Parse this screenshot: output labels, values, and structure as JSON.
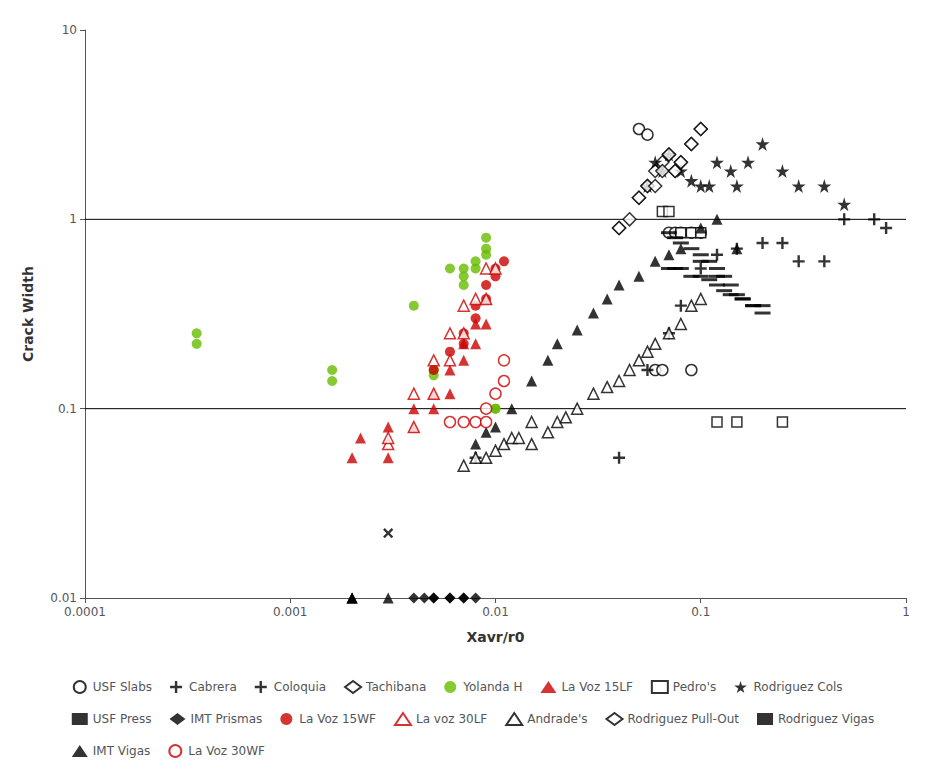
{
  "chart_data": {
    "type": "scatter",
    "xlabel": "Xavr/r0",
    "ylabel": "Crack Width",
    "log": true,
    "xlim": [
      0.0001,
      1
    ],
    "ylim": [
      0.01,
      10
    ],
    "xticks": [
      0.0001,
      0.001,
      0.01,
      0.1,
      1
    ],
    "yticks": [
      0.01,
      0.1,
      1,
      10
    ],
    "grid": false,
    "legend": "bottom",
    "hlines": [
      0.1,
      1.0
    ],
    "series": [
      {
        "name": "USF Slabs",
        "color": "black",
        "marker": "open-circle",
        "x": [
          0.05,
          0.055,
          0.06,
          0.065,
          0.07,
          0.075,
          0.08,
          0.09,
          0.09,
          0.1
        ],
        "values": [
          3.0,
          2.8,
          0.16,
          0.16,
          0.85,
          0.85,
          0.85,
          0.85,
          0.16,
          0.85
        ]
      },
      {
        "name": "Cabrera",
        "color": "black",
        "marker": "x",
        "x": [
          0.003
        ],
        "values": [
          0.022
        ]
      },
      {
        "name": "Coloquia",
        "color": "black",
        "marker": "plus",
        "x": [
          0.008,
          0.04,
          0.055,
          0.07,
          0.08,
          0.1,
          0.12,
          0.15,
          0.2,
          0.25,
          0.3,
          0.4,
          0.5,
          0.7,
          0.8
        ],
        "values": [
          0.055,
          0.055,
          0.16,
          0.25,
          0.35,
          0.55,
          0.65,
          0.7,
          0.75,
          0.75,
          0.6,
          0.6,
          1.0,
          1.0,
          0.9
        ]
      },
      {
        "name": "Tachibana",
        "color": "black",
        "marker": "open-diamond",
        "x": [
          0.04,
          0.05,
          0.055,
          0.06,
          0.065,
          0.07,
          0.075,
          0.08,
          0.09,
          0.1
        ],
        "values": [
          0.9,
          1.3,
          1.5,
          1.8,
          2.0,
          2.2,
          1.8,
          2.0,
          2.5,
          3.0
        ]
      },
      {
        "name": "Yolanda H",
        "color": "#66bb00",
        "marker": "circle",
        "x": [
          0.00035,
          0.00035,
          0.0016,
          0.0016,
          0.004,
          0.005,
          0.005,
          0.006,
          0.007,
          0.007,
          0.007,
          0.008,
          0.008,
          0.009,
          0.009,
          0.009,
          0.01,
          0.01
        ],
        "values": [
          0.25,
          0.22,
          0.16,
          0.14,
          0.35,
          0.16,
          0.15,
          0.55,
          0.55,
          0.5,
          0.45,
          0.55,
          0.6,
          0.65,
          0.7,
          0.8,
          0.1,
          0.1
        ]
      },
      {
        "name": "La Voz 15LF",
        "color": "#cc0000",
        "marker": "triangle",
        "x": [
          0.002,
          0.0022,
          0.003,
          0.003,
          0.004,
          0.004,
          0.005,
          0.005,
          0.006,
          0.006,
          0.007,
          0.007,
          0.008,
          0.008,
          0.009,
          0.009
        ],
        "values": [
          0.055,
          0.07,
          0.055,
          0.08,
          0.08,
          0.1,
          0.1,
          0.12,
          0.12,
          0.16,
          0.18,
          0.22,
          0.22,
          0.28,
          0.28,
          0.38
        ]
      },
      {
        "name": "Pedro's",
        "color": "black",
        "marker": "open-square",
        "x": [
          0.065,
          0.07,
          0.08,
          0.09,
          0.1,
          0.12,
          0.15,
          0.25
        ],
        "values": [
          1.1,
          1.1,
          0.85,
          0.85,
          0.85,
          0.085,
          0.085,
          0.085
        ]
      },
      {
        "name": "Rodriguez Cols",
        "color": "black",
        "marker": "star",
        "x": [
          0.055,
          0.06,
          0.065,
          0.07,
          0.08,
          0.09,
          0.1,
          0.11,
          0.12,
          0.14,
          0.15,
          0.17,
          0.2,
          0.25,
          0.3,
          0.4,
          0.5
        ],
        "values": [
          1.5,
          2.0,
          1.8,
          2.2,
          1.8,
          1.6,
          1.5,
          1.5,
          2.0,
          1.8,
          1.5,
          2.0,
          2.5,
          1.8,
          1.5,
          1.5,
          1.2
        ]
      },
      {
        "name": "USF Press",
        "color": "black",
        "marker": "hline",
        "x": [
          0.07,
          0.075,
          0.08,
          0.09,
          0.1,
          0.1,
          0.11,
          0.12,
          0.12,
          0.13,
          0.14,
          0.15,
          0.16,
          0.18,
          0.2
        ],
        "values": [
          0.85,
          0.8,
          0.75,
          0.7,
          0.65,
          0.6,
          0.6,
          0.55,
          0.5,
          0.5,
          0.45,
          0.4,
          0.38,
          0.35,
          0.32
        ]
      },
      {
        "name": "IMT Prismas",
        "color": "black",
        "marker": "diamond",
        "x": [
          0.004,
          0.0045,
          0.005,
          0.005,
          0.006,
          0.006,
          0.007,
          0.007,
          0.008
        ],
        "values": [
          0.01,
          0.01,
          0.01,
          0.01,
          0.01,
          0.01,
          0.01,
          0.01,
          0.01
        ]
      },
      {
        "name": "La Voz 15WF",
        "color": "#cc0000",
        "marker": "circle",
        "x": [
          0.005,
          0.006,
          0.007,
          0.007,
          0.008,
          0.008,
          0.009,
          0.009,
          0.01,
          0.01,
          0.011
        ],
        "values": [
          0.16,
          0.2,
          0.22,
          0.25,
          0.3,
          0.35,
          0.38,
          0.45,
          0.5,
          0.55,
          0.6
        ]
      },
      {
        "name": "La voz 30LF",
        "color": "#cc0000",
        "marker": "open-triangle",
        "x": [
          0.003,
          0.003,
          0.004,
          0.004,
          0.005,
          0.005,
          0.006,
          0.006,
          0.007,
          0.007,
          0.008,
          0.009,
          0.009,
          0.01
        ],
        "values": [
          0.065,
          0.07,
          0.08,
          0.12,
          0.12,
          0.18,
          0.18,
          0.25,
          0.25,
          0.35,
          0.38,
          0.38,
          0.55,
          0.55
        ]
      },
      {
        "name": "Andrade's",
        "color": "black",
        "marker": "open-triangle",
        "x": [
          0.007,
          0.008,
          0.009,
          0.01,
          0.011,
          0.012,
          0.013,
          0.015,
          0.015,
          0.018,
          0.02,
          0.022,
          0.025,
          0.03,
          0.035,
          0.04,
          0.045,
          0.05,
          0.055,
          0.06,
          0.07,
          0.08,
          0.09,
          0.1
        ],
        "values": [
          0.05,
          0.055,
          0.055,
          0.06,
          0.065,
          0.07,
          0.07,
          0.085,
          0.065,
          0.075,
          0.085,
          0.09,
          0.1,
          0.12,
          0.13,
          0.14,
          0.16,
          0.18,
          0.2,
          0.22,
          0.25,
          0.28,
          0.35,
          0.38
        ]
      },
      {
        "name": "Rodriguez Pull-Out",
        "color": "black",
        "marker": "open-diamond",
        "x": [
          0.04,
          0.045,
          0.05,
          0.055,
          0.06,
          0.065,
          0.07,
          0.075,
          0.08,
          0.09,
          0.1
        ],
        "values": [
          0.9,
          1.0,
          1.3,
          1.5,
          1.5,
          1.8,
          2.2,
          1.8,
          2.0,
          2.5,
          3.0
        ]
      },
      {
        "name": "Rodriguez Vigas",
        "color": "black",
        "marker": "hline",
        "x": [
          0.07,
          0.075,
          0.08,
          0.09,
          0.1,
          0.11,
          0.12,
          0.13,
          0.14,
          0.16,
          0.18,
          0.2
        ],
        "values": [
          0.55,
          0.55,
          0.55,
          0.5,
          0.5,
          0.48,
          0.45,
          0.42,
          0.4,
          0.38,
          0.35,
          0.35
        ]
      },
      {
        "name": "IMT Vigas",
        "color": "black",
        "marker": "triangle",
        "x": [
          0.002,
          0.002,
          0.002,
          0.003,
          0.008,
          0.009,
          0.01,
          0.012,
          0.015,
          0.018,
          0.02,
          0.025,
          0.03,
          0.035,
          0.04,
          0.05,
          0.06,
          0.07,
          0.08,
          0.1,
          0.12,
          0.15
        ],
        "values": [
          0.01,
          0.01,
          0.01,
          0.01,
          0.065,
          0.075,
          0.08,
          0.1,
          0.14,
          0.18,
          0.22,
          0.26,
          0.32,
          0.38,
          0.45,
          0.5,
          0.6,
          0.65,
          0.7,
          0.9,
          1.0,
          0.7
        ]
      },
      {
        "name": "La Voz 30WF",
        "color": "#cc0000",
        "marker": "open-circle",
        "x": [
          0.006,
          0.007,
          0.008,
          0.009,
          0.009,
          0.01,
          0.011,
          0.011
        ],
        "values": [
          0.085,
          0.085,
          0.085,
          0.085,
          0.1,
          0.12,
          0.14,
          0.18
        ]
      }
    ]
  }
}
